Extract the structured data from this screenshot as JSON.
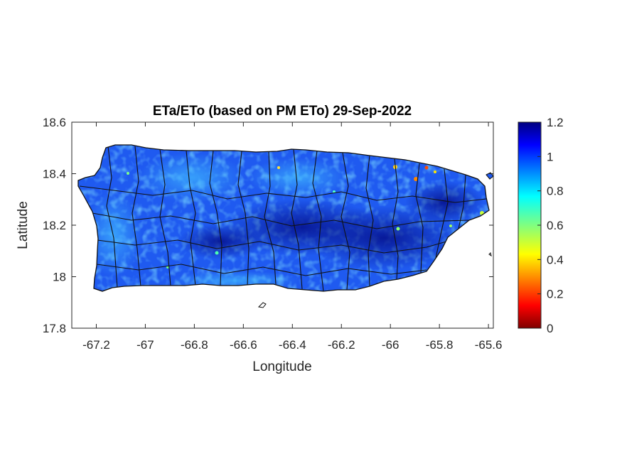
{
  "chart_data": {
    "type": "heatmap",
    "title": "ETa/ETo (based on PM ETo) 29-Sep-2022",
    "xlabel": "Longitude",
    "ylabel": "Latitude",
    "xlim": [
      -67.3,
      -65.58
    ],
    "ylim": [
      17.8,
      18.6
    ],
    "xticks": [
      -67.2,
      -67,
      -66.8,
      -66.6,
      -66.4,
      -66.2,
      -66,
      -65.8,
      -65.6
    ],
    "xtick_labels": [
      "-67.2",
      "-67",
      "-66.8",
      "-66.6",
      "-66.4",
      "-66.2",
      "-66",
      "-65.8",
      "-65.6"
    ],
    "yticks": [
      17.8,
      18,
      18.2,
      18.4,
      18.6
    ],
    "ytick_labels": [
      "17.8",
      "18",
      "18.2",
      "18.4",
      "18.6"
    ],
    "colorbar": {
      "colormap": "jet",
      "range": [
        0,
        1.2
      ],
      "ticks": [
        0,
        0.2,
        0.4,
        0.6,
        0.8,
        1,
        1.2
      ],
      "tick_labels": [
        "0",
        "0.2",
        "0.4",
        "0.6",
        "0.8",
        "1",
        "1.2"
      ]
    },
    "region": "Puerto Rico",
    "typical_value": 0.95,
    "high_zone_value": 1.15,
    "grid": false
  },
  "colors": {
    "land_base": "#1f5af0",
    "land_dark": "#0b1fb8",
    "land_light": "#2f9cf5",
    "border": "#111111"
  }
}
